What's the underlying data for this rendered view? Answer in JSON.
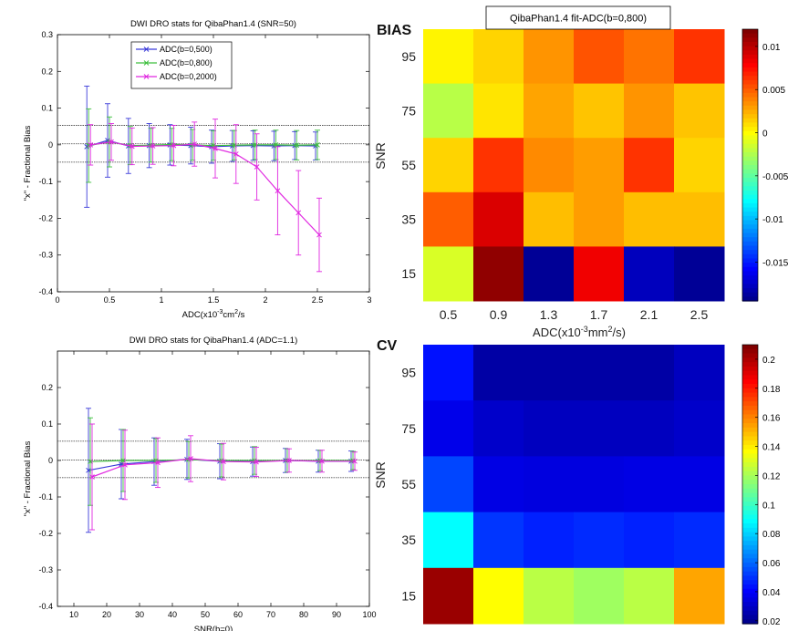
{
  "chart_data": [
    {
      "type": "line",
      "title": "DWI DRO stats for QibaPhan1.4 (SNR=50)",
      "xlabel": "ADC(x10",
      "xlabel_sup": "-3",
      "xlabel_tail": "cm",
      "xlabel_sup2": "2",
      "xlabel_end": "/s",
      "ylabel": "\"x\" - Fractional Bias",
      "xlim": [
        0,
        3
      ],
      "ylim": [
        -0.4,
        0.3
      ],
      "xticks": [
        "0",
        "0.5",
        "1",
        "1.5",
        "2",
        "2.5",
        "3"
      ],
      "xtick_values": [
        0,
        0.5,
        1,
        1.5,
        2,
        2.5,
        3
      ],
      "yticks": [
        "-0.4",
        "-0.3",
        "-0.2",
        "-0.1",
        "0",
        "0.1",
        "0.2",
        "0.3"
      ],
      "ytick_values": [
        -0.4,
        -0.3,
        -0.2,
        -0.1,
        0,
        0.1,
        0.2,
        0.3
      ],
      "hlines": [
        0.053,
        0.003,
        -0.047
      ],
      "legend_position": "top-center",
      "x": [
        0.3,
        0.5,
        0.7,
        0.9,
        1.1,
        1.3,
        1.5,
        1.7,
        1.9,
        2.1,
        2.3,
        2.5
      ],
      "series": [
        {
          "name": "ADC(b=0,500)",
          "color": "#3b3bd9",
          "values": [
            -0.005,
            0.012,
            -0.003,
            -0.002,
            0.0,
            -0.002,
            -0.005,
            -0.003,
            -0.002,
            -0.003,
            -0.002,
            -0.003
          ],
          "errors": [
            0.165,
            0.1,
            0.075,
            0.06,
            0.055,
            0.05,
            0.045,
            0.042,
            0.04,
            0.04,
            0.038,
            0.038
          ]
        },
        {
          "name": "ADC(b=0,800)",
          "color": "#3fbf3f",
          "values": [
            -0.002,
            0.008,
            -0.002,
            -0.001,
            0.001,
            0.0,
            -0.002,
            -0.001,
            0.0,
            0.0,
            -0.001,
            0.0
          ],
          "errors": [
            0.1,
            0.068,
            0.052,
            0.046,
            0.044,
            0.042,
            0.04,
            0.04,
            0.04,
            0.04,
            0.04,
            0.04
          ]
        },
        {
          "name": "ADC(b=0,2000)",
          "color": "#e028e0",
          "values": [
            0.0,
            0.008,
            -0.004,
            -0.003,
            -0.002,
            0.002,
            -0.01,
            -0.025,
            -0.06,
            -0.125,
            -0.185,
            -0.245
          ],
          "errors": [
            0.055,
            0.05,
            0.05,
            0.05,
            0.055,
            0.06,
            0.08,
            0.08,
            0.09,
            0.12,
            0.115,
            0.1
          ]
        }
      ]
    },
    {
      "type": "heatmap",
      "panel_label": "BIAS",
      "title": "QibaPhan1.4 fit-ADC(b=0,800)",
      "xlabel": "ADC(x10",
      "xlabel_sup": "-3",
      "xlabel_tail": "mm",
      "xlabel_sup2": "2",
      "xlabel_end": "/s)",
      "ylabel": "SNR",
      "x_categories": [
        "0.5",
        "0.9",
        "1.3",
        "1.7",
        "2.1",
        "2.5"
      ],
      "y_categories": [
        "95",
        "75",
        "55",
        "35",
        "15"
      ],
      "clim": [
        -0.0195,
        0.012
      ],
      "colorbar_ticks": [
        "0.01",
        "0.005",
        "0",
        "-0.005",
        "-0.01",
        "-0.015"
      ],
      "colorbar_tick_values": [
        0.01,
        0.005,
        0,
        -0.005,
        -0.01,
        -0.015
      ],
      "values": [
        [
          0.0005,
          0.0015,
          0.0035,
          0.0055,
          0.0045,
          0.0065
        ],
        [
          -0.002,
          0.001,
          0.003,
          0.002,
          0.0035,
          0.002
        ],
        [
          0.0015,
          0.0065,
          0.0038,
          0.0032,
          0.0065,
          0.0015
        ],
        [
          0.0052,
          0.0092,
          0.0022,
          0.0032,
          0.0022,
          0.0022
        ],
        [
          -0.001,
          0.0115,
          -0.0188,
          0.0085,
          -0.0176,
          -0.0188
        ]
      ]
    },
    {
      "type": "line",
      "title": "DWI DRO stats for QibaPhan1.4 (ADC=1.1)",
      "xlabel": "SNR(b=0)",
      "ylabel": "\"x\" - Fractional Bias",
      "xlim": [
        5,
        100
      ],
      "ylim": [
        -0.4,
        0.3
      ],
      "xticks": [
        "10",
        "20",
        "30",
        "40",
        "50",
        "60",
        "70",
        "80",
        "90",
        "100"
      ],
      "xtick_values": [
        10,
        20,
        30,
        40,
        50,
        60,
        70,
        80,
        90,
        100
      ],
      "yticks": [
        "-0.4",
        "-0.3",
        "-0.2",
        "-0.1",
        "0",
        "0.1",
        "0.2"
      ],
      "ytick_values": [
        -0.4,
        -0.3,
        -0.2,
        -0.1,
        0,
        0.1,
        0.2
      ],
      "hlines": [
        0.053,
        0.001,
        -0.047
      ],
      "x": [
        15,
        25,
        35,
        45,
        55,
        65,
        75,
        85,
        95
      ],
      "series": [
        {
          "color": "#3b3bd9",
          "values": [
            -0.027,
            -0.01,
            -0.003,
            0.003,
            -0.002,
            -0.003,
            0.0,
            -0.002,
            -0.002
          ],
          "errors": [
            0.17,
            0.095,
            0.065,
            0.055,
            0.048,
            0.04,
            0.033,
            0.03,
            0.028
          ]
        },
        {
          "color": "#3fbf3f",
          "values": [
            -0.003,
            0.0,
            0.0,
            0.002,
            0.0,
            0.0,
            0.0,
            0.0,
            0.0
          ],
          "errors": [
            0.12,
            0.085,
            0.06,
            0.05,
            0.045,
            0.038,
            0.032,
            0.028,
            0.025
          ]
        },
        {
          "color": "#e028e0",
          "values": [
            -0.045,
            -0.012,
            -0.006,
            0.005,
            -0.003,
            -0.004,
            0.0,
            -0.002,
            -0.002
          ],
          "errors": [
            0.145,
            0.095,
            0.068,
            0.063,
            0.05,
            0.04,
            0.032,
            0.03,
            0.025
          ]
        }
      ]
    },
    {
      "type": "heatmap",
      "panel_label": "CV",
      "xlabel": "",
      "ylabel": "SNR",
      "x_categories": [],
      "y_categories": [
        "95",
        "75",
        "55",
        "35",
        "15"
      ],
      "clim": [
        0.018,
        0.21
      ],
      "colorbar_ticks": [
        "0.2",
        "0.18",
        "0.16",
        "0.14",
        "0.12",
        "0.1",
        "0.08",
        "0.06",
        "0.04",
        "0.02"
      ],
      "colorbar_tick_values": [
        0.2,
        0.18,
        0.16,
        0.14,
        0.12,
        0.1,
        0.08,
        0.06,
        0.04,
        0.02
      ],
      "values": [
        [
          0.045,
          0.025,
          0.025,
          0.025,
          0.025,
          0.03
        ],
        [
          0.038,
          0.032,
          0.03,
          0.03,
          0.03,
          0.032
        ],
        [
          0.055,
          0.037,
          0.036,
          0.036,
          0.037,
          0.037
        ],
        [
          0.09,
          0.052,
          0.048,
          0.05,
          0.048,
          0.05
        ],
        [
          0.205,
          0.138,
          0.125,
          0.12,
          0.125,
          0.155
        ]
      ]
    }
  ]
}
